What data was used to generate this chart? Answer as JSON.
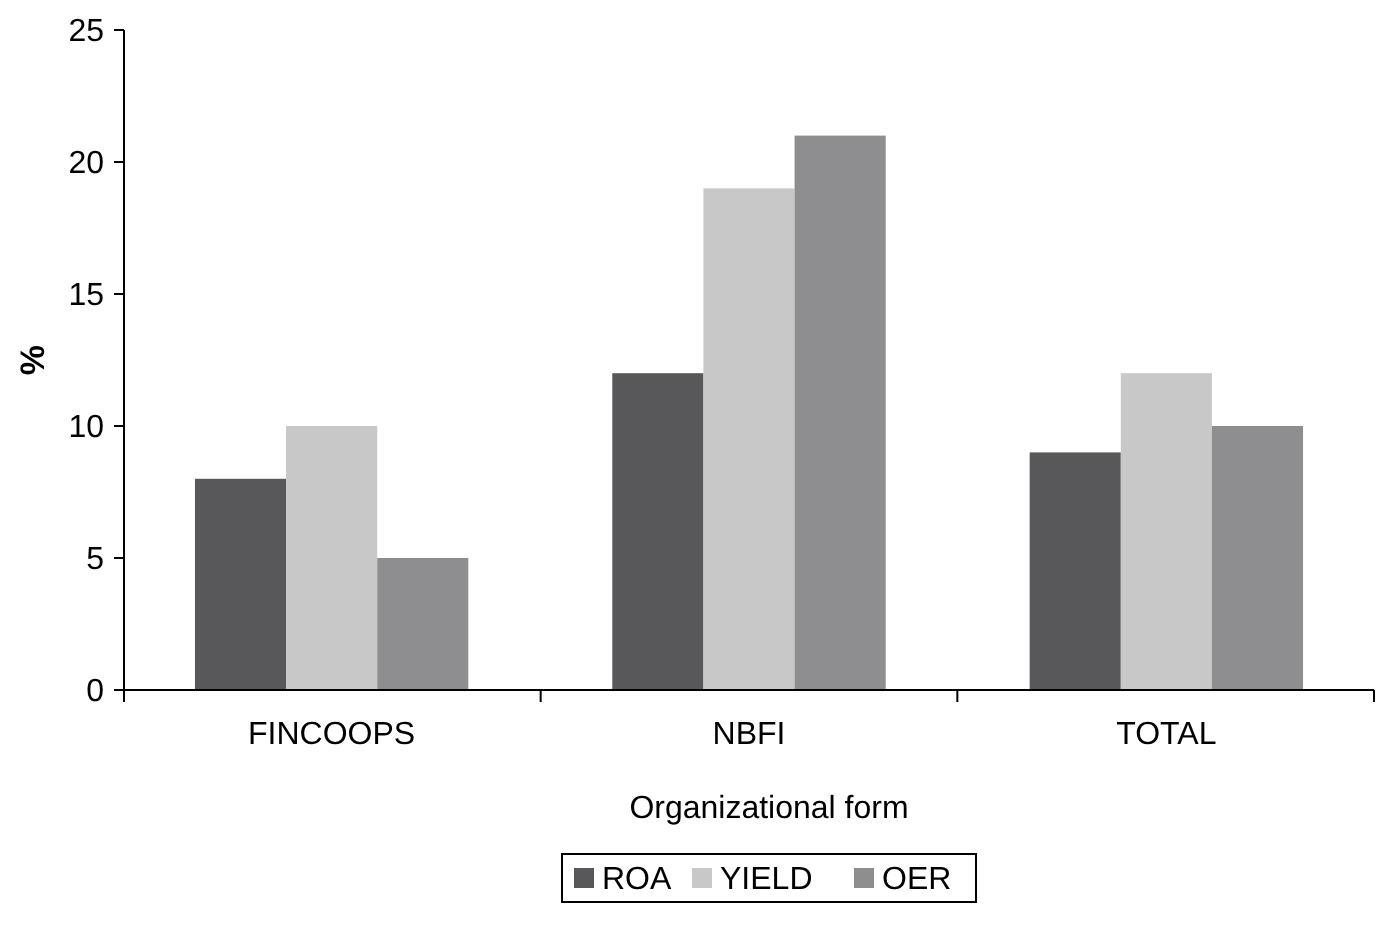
{
  "chart_data": {
    "type": "bar",
    "xlabel": "Organizational form",
    "ylabel": "%",
    "categories": [
      "FINCOOPS",
      "NBFI",
      "TOTAL"
    ],
    "series": [
      {
        "name": "ROA",
        "color": "#58585a",
        "values": [
          8,
          12,
          9
        ]
      },
      {
        "name": "YIELD",
        "color": "#c8c8c8",
        "values": [
          10,
          19,
          12
        ]
      },
      {
        "name": "OER",
        "color": "#8e8e90",
        "values": [
          5,
          21,
          10
        ]
      }
    ],
    "ylim": [
      0,
      25
    ],
    "yticks": [
      0,
      5,
      10,
      15,
      20,
      25
    ],
    "grid": false,
    "legend": "bottom"
  }
}
